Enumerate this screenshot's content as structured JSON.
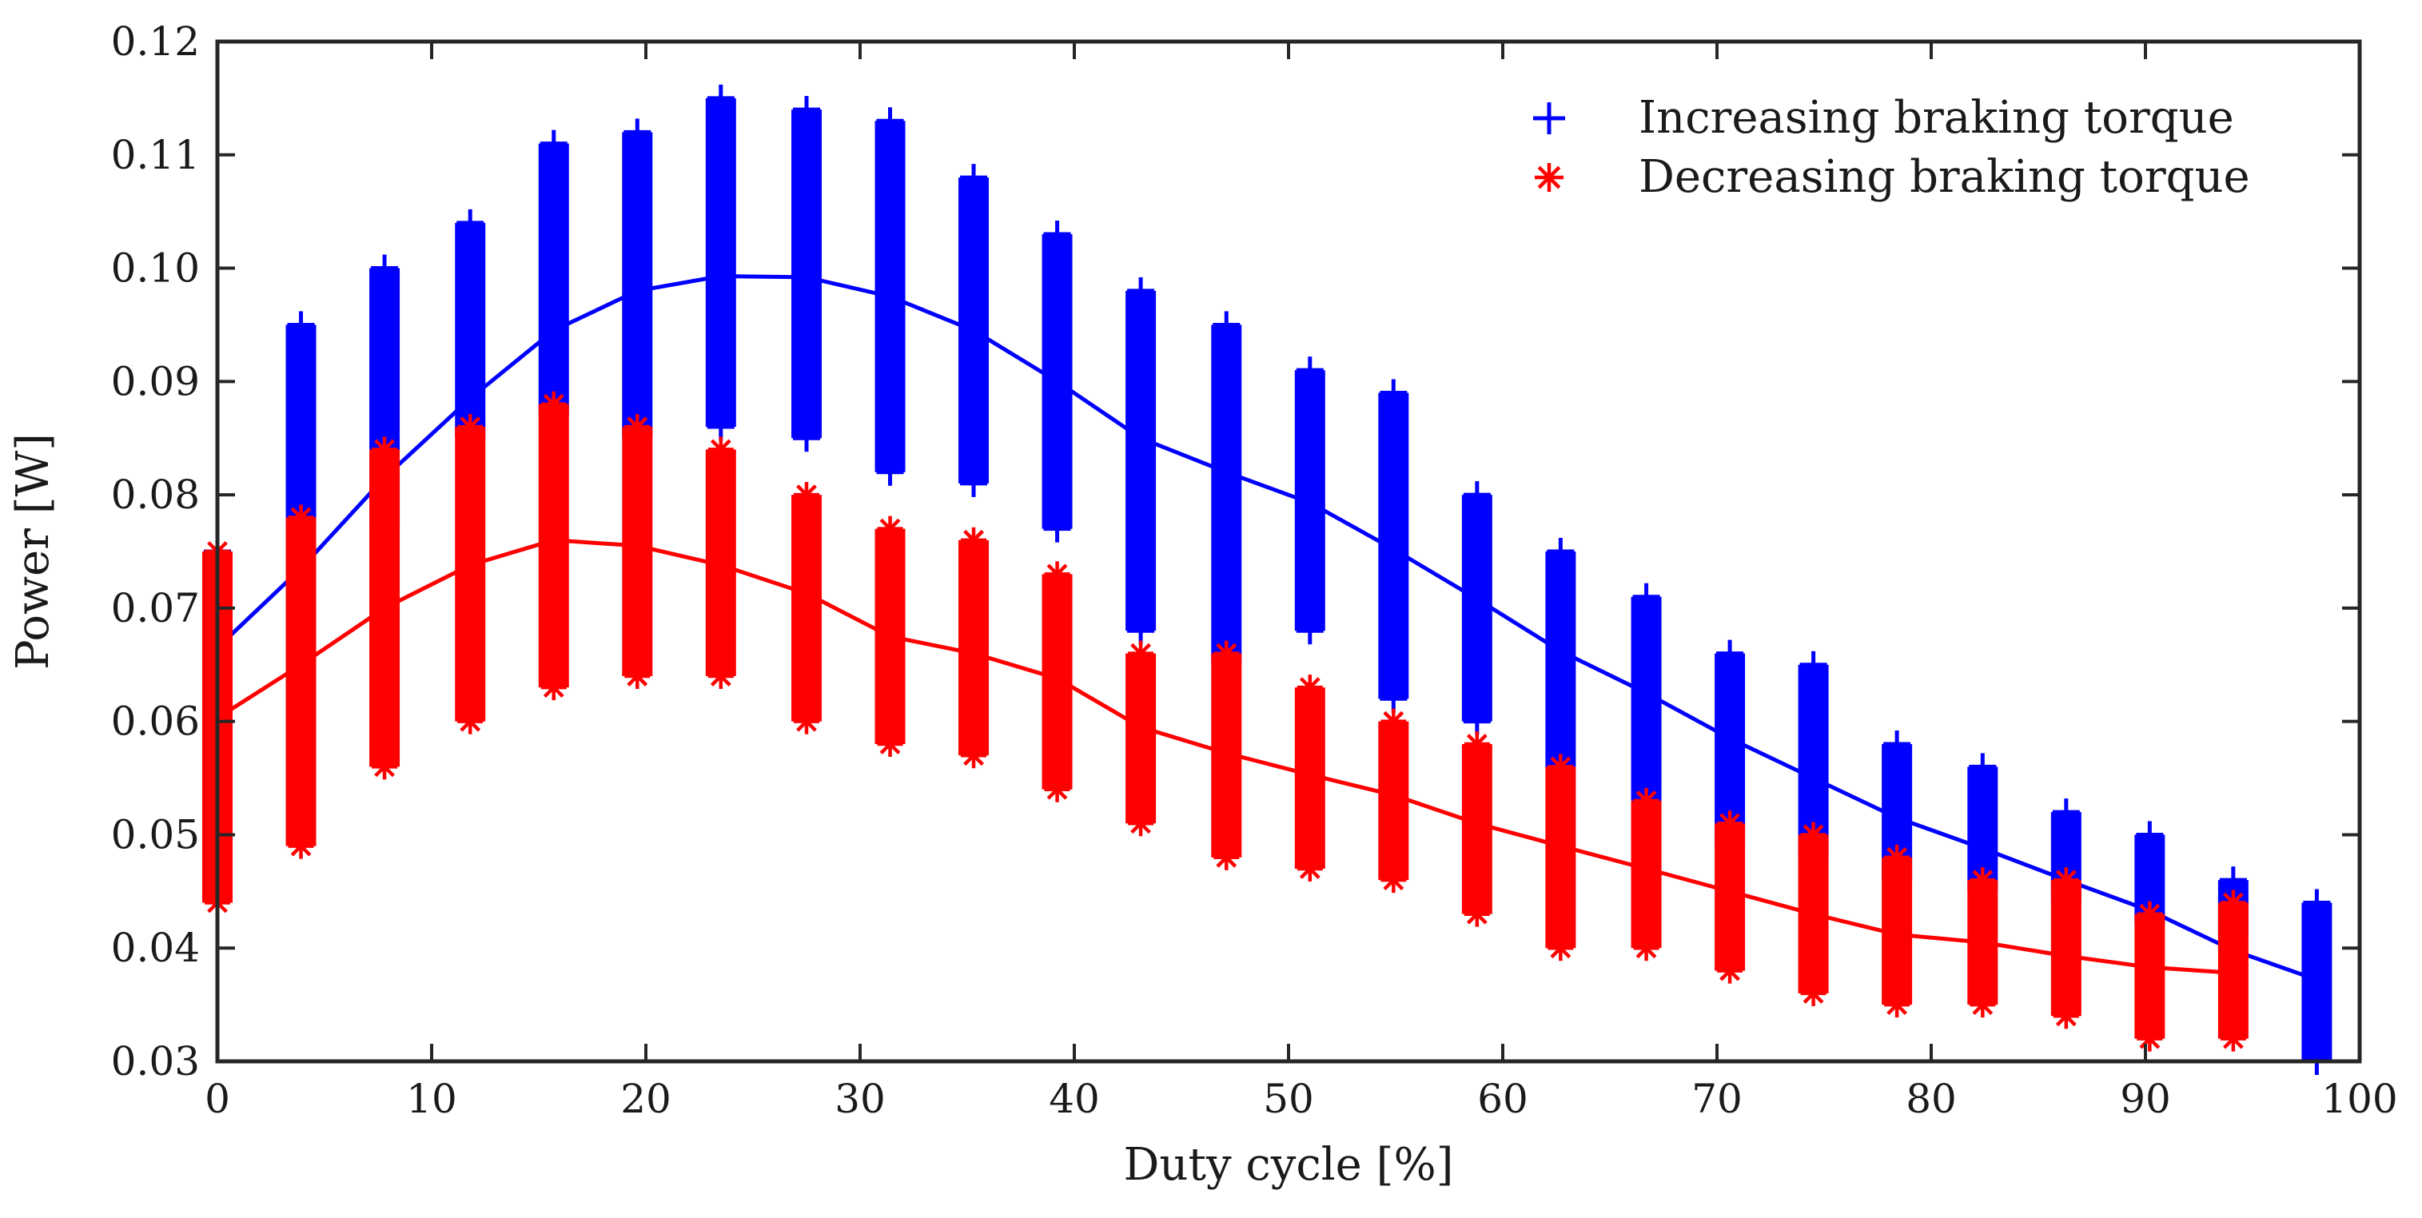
{
  "chart_data": {
    "type": "scatter",
    "title": "",
    "xlabel": "Duty cycle [%]",
    "ylabel": "Power [W]",
    "xlim": [
      0,
      100
    ],
    "ylim": [
      0.03,
      0.12
    ],
    "grid": false,
    "legend_position": "top-right",
    "x_ticks": [
      0,
      10,
      20,
      30,
      40,
      50,
      60,
      70,
      80,
      90,
      100
    ],
    "x_tick_labels": [
      "0",
      "10",
      "20",
      "30",
      "40",
      "50",
      "60",
      "70",
      "80",
      "90",
      "100"
    ],
    "y_ticks": [
      0.03,
      0.04,
      0.05,
      0.06,
      0.07,
      0.08,
      0.09,
      0.1,
      0.11,
      0.12
    ],
    "y_tick_labels": [
      "0.03",
      "0.04",
      "0.05",
      "0.06",
      "0.07",
      "0.08",
      "0.09",
      "0.10",
      "0.11",
      "0.12"
    ],
    "series": [
      {
        "name": "Increasing braking torque",
        "color": "#0000ff",
        "marker": "+",
        "x": [
          0,
          3.9,
          7.8,
          11.8,
          15.7,
          19.6,
          23.5,
          27.5,
          31.4,
          35.3,
          39.2,
          43.1,
          47.1,
          51.0,
          54.9,
          58.8,
          62.7,
          66.7,
          70.6,
          74.5,
          78.4,
          82.4,
          86.3,
          90.2,
          94.1,
          98.0
        ],
        "min": [
          0.068,
          0.077,
          0.077,
          0.085,
          0.087,
          0.085,
          0.086,
          0.085,
          0.082,
          0.081,
          0.077,
          0.068,
          0.065,
          0.068,
          0.062,
          0.06,
          0.056,
          0.053,
          0.049,
          0.048,
          0.046,
          0.045,
          0.044,
          0.042,
          0.041,
          0.03
        ],
        "max": [
          0.075,
          0.095,
          0.1,
          0.104,
          0.111,
          0.112,
          0.115,
          0.114,
          0.113,
          0.108,
          0.103,
          0.098,
          0.095,
          0.091,
          0.089,
          0.08,
          0.075,
          0.071,
          0.066,
          0.065,
          0.058,
          0.056,
          0.052,
          0.05,
          0.046,
          0.044
        ],
        "fit": [
          0.0665,
          0.0735,
          0.0815,
          0.0885,
          0.0945,
          0.098,
          0.0993,
          0.0992,
          0.0975,
          0.0945,
          0.09,
          0.085,
          0.082,
          0.0793,
          0.0752,
          0.0708,
          0.0662,
          0.0625,
          0.0585,
          0.055,
          0.0515,
          0.0488,
          0.046,
          0.0433,
          0.0398,
          0.0372
        ]
      },
      {
        "name": "Decreasing braking torque",
        "color": "#ff0000",
        "marker": "*",
        "x": [
          0,
          3.9,
          7.8,
          11.8,
          15.7,
          19.6,
          23.5,
          27.5,
          31.4,
          35.3,
          39.2,
          43.1,
          47.1,
          51.0,
          54.9,
          58.8,
          62.7,
          66.7,
          70.6,
          74.5,
          78.4,
          82.4,
          86.3,
          90.2,
          94.1
        ],
        "min": [
          0.044,
          0.049,
          0.056,
          0.06,
          0.063,
          0.064,
          0.064,
          0.06,
          0.058,
          0.057,
          0.054,
          0.051,
          0.048,
          0.047,
          0.046,
          0.043,
          0.04,
          0.04,
          0.038,
          0.036,
          0.035,
          0.035,
          0.034,
          0.032,
          0.032
        ],
        "max": [
          0.075,
          0.078,
          0.084,
          0.086,
          0.088,
          0.086,
          0.084,
          0.08,
          0.077,
          0.076,
          0.073,
          0.066,
          0.066,
          0.063,
          0.06,
          0.058,
          0.056,
          0.053,
          0.051,
          0.05,
          0.048,
          0.046,
          0.046,
          0.043,
          0.044
        ],
        "fit": [
          0.0603,
          0.065,
          0.07,
          0.0738,
          0.076,
          0.0755,
          0.0738,
          0.0713,
          0.0675,
          0.066,
          0.0638,
          0.0595,
          0.0572,
          0.0553,
          0.0535,
          0.051,
          0.049,
          0.047,
          0.045,
          0.043,
          0.0412,
          0.0405,
          0.0393,
          0.0383,
          0.0378
        ]
      }
    ]
  }
}
